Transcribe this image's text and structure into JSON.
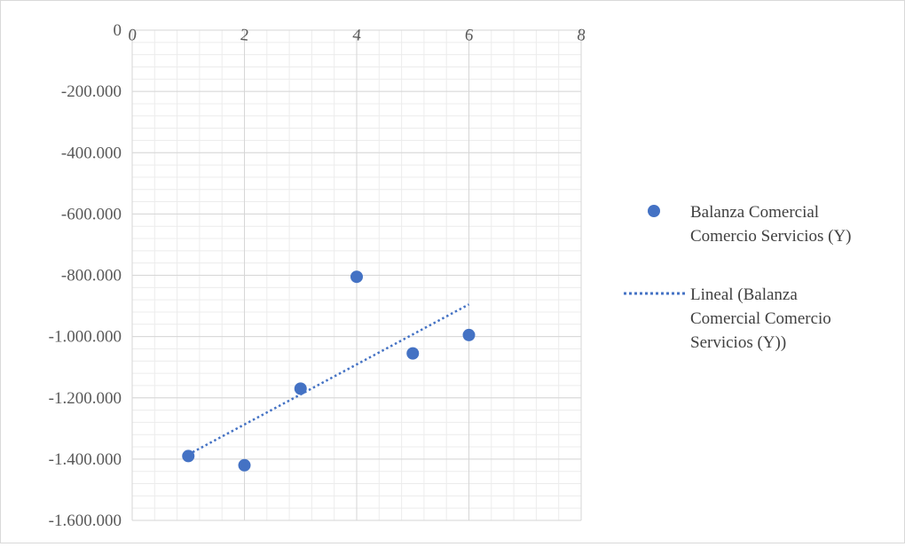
{
  "chart_data": {
    "type": "scatter",
    "title": "",
    "xlabel": "",
    "ylabel": "",
    "xlim": [
      0,
      8
    ],
    "ylim": [
      -1600000,
      0
    ],
    "x_ticks": [
      0,
      2,
      4,
      6,
      8
    ],
    "y_ticks": [
      0,
      -200000,
      -400000,
      -600000,
      -800000,
      -1000000,
      -1200000,
      -1400000,
      -1600000
    ],
    "x_tick_labels": [
      "0",
      "2",
      "4",
      "6",
      "8"
    ],
    "y_tick_labels": [
      "0",
      "-200.000",
      "-400.000",
      "-600.000",
      "-800.000",
      "-1.000.000",
      "-1.200.000",
      "-1.400.000",
      "-1.600.000"
    ],
    "x_axis_position": "top",
    "grid": true,
    "minor_grid": true,
    "legend_position": "right",
    "series": [
      {
        "name": "Balanza Comercial Comercio Servicios (Y)",
        "type": "scatter",
        "color": "#4472c4",
        "x": [
          1,
          2,
          3,
          4,
          5,
          6
        ],
        "y": [
          -1390000,
          -1420000,
          -1170000,
          -805000,
          -1055000,
          -995000
        ]
      }
    ],
    "trendline": {
      "name": "Lineal (Balanza Comercial Comercio Servicios (Y))",
      "type": "linear",
      "style": "dotted",
      "color": "#4472c4",
      "x": [
        1,
        6
      ],
      "y": [
        -1385000,
        -895000
      ]
    },
    "legend": [
      {
        "marker": "circle",
        "label_lines": [
          "Balanza Comercial",
          "Comercio Servicios (Y)"
        ]
      },
      {
        "marker": "dotted-line",
        "label_lines": [
          "Lineal (Balanza",
          "Comercial Comercio",
          "Servicios (Y))"
        ]
      }
    ]
  }
}
